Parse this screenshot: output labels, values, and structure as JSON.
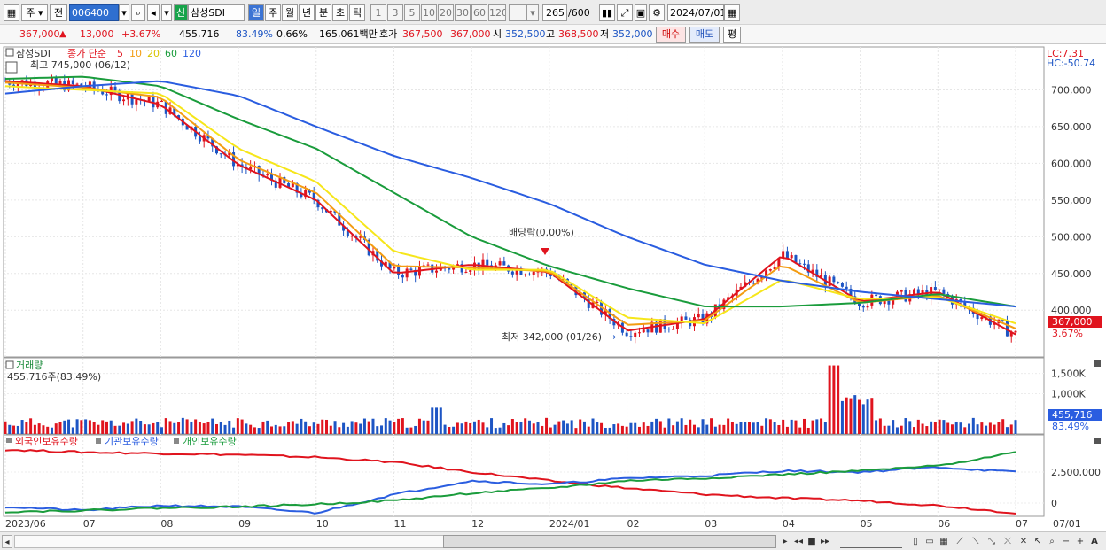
{
  "toolbar": {
    "period_label": "주",
    "prev_label": "전",
    "stock_code": "006400",
    "stock_badge": "신",
    "stock_name": "삼성SDI",
    "timeframes": [
      "일",
      "주",
      "월",
      "년",
      "분",
      "초",
      "틱"
    ],
    "active_timeframe": "일",
    "intervals": [
      "1",
      "3",
      "5",
      "10",
      "20",
      "30",
      "60",
      "120"
    ],
    "count_value": "265",
    "count_total": "/600",
    "date_value": "2024/07/01"
  },
  "quote": {
    "price": "367,000",
    "change": "13,000",
    "change_pct": "+3.67%",
    "volume": "455,716",
    "volume_ratio": "83.49%",
    "turnover_pct": "0.66%",
    "amount": "165,061백만",
    "ask_label": "호가",
    "ask_1": "367,500",
    "ask_2": "367,000",
    "open_label": "시",
    "open": "352,500",
    "high_label": "고",
    "high": "368,500",
    "low_label": "저",
    "low": "352,000",
    "buy_label": "매수",
    "sell_label": "매도",
    "eval_label": "평"
  },
  "price_panel": {
    "legend_name": "삼성SDI",
    "legend_ma": "종가 단순",
    "ma_periods": [
      "5",
      "10",
      "20",
      "60",
      "120"
    ],
    "ma_colors": [
      "#e0141e",
      "#f39c12",
      "#f6e61a",
      "#1a9c3c",
      "#2a5de0"
    ],
    "lc_label": "LC:7.31",
    "hc_label": "HC:-50.74",
    "high_annotation": "최고 745,000 (06/12)",
    "low_annotation": "최저 342,000 (01/26)",
    "dividend_annotation": "배당락(0.00%)",
    "current_price_tag": "367,000",
    "current_pct_tag": "3.67%",
    "y_ticks": [
      "700,000",
      "650,000",
      "600,000",
      "550,000",
      "500,000",
      "450,000",
      "400,000"
    ]
  },
  "volume_panel": {
    "title": "거래량",
    "value_label": "455,716주(83.49%)",
    "y_ticks": [
      "1,500K",
      "1,000K"
    ],
    "current_tag": "455,716",
    "current_pct": "83.49%"
  },
  "holdings_panel": {
    "legend": [
      "외국인보유수량",
      "기관보유수량",
      "개인보유수량"
    ],
    "colors": [
      "#e0141e",
      "#2a5de0",
      "#1a9c3c"
    ],
    "y_ticks": [
      "2,500,000",
      "0"
    ]
  },
  "x_axis": {
    "labels": [
      "2023/06",
      "07",
      "08",
      "09",
      "10",
      "11",
      "12",
      "2024/01",
      "02",
      "03",
      "04",
      "05",
      "06",
      "07"
    ],
    "right_label": "07/01"
  },
  "chart_data": {
    "type": "line",
    "title": "",
    "x": [
      "2023/06",
      "07",
      "08",
      "09",
      "10",
      "11",
      "12",
      "2024/01",
      "02",
      "03",
      "04",
      "05",
      "06",
      "07"
    ],
    "series": [
      {
        "name": "5",
        "values": [
          712000,
          705000,
          680000,
          598000,
          550000,
          450000,
          462000,
          452000,
          372000,
          388000,
          475000,
          412000,
          425000,
          367000
        ]
      },
      {
        "name": "10",
        "values": [
          710000,
          703000,
          690000,
          605000,
          560000,
          460000,
          458000,
          453000,
          380000,
          386000,
          462000,
          410000,
          420000,
          375000
        ]
      },
      {
        "name": "20",
        "values": [
          705000,
          700000,
          695000,
          620000,
          575000,
          480000,
          455000,
          455000,
          390000,
          382000,
          442000,
          415000,
          418000,
          382000
        ]
      },
      {
        "name": "60",
        "values": [
          715000,
          718000,
          705000,
          660000,
          620000,
          560000,
          500000,
          460000,
          430000,
          405000,
          405000,
          410000,
          422000,
          405000
        ]
      },
      {
        "name": "120",
        "values": [
          695000,
          705000,
          712000,
          692000,
          650000,
          610000,
          580000,
          545000,
          500000,
          462000,
          440000,
          425000,
          415000,
          405000
        ]
      }
    ],
    "ylim": [
      340000,
      750000
    ]
  }
}
